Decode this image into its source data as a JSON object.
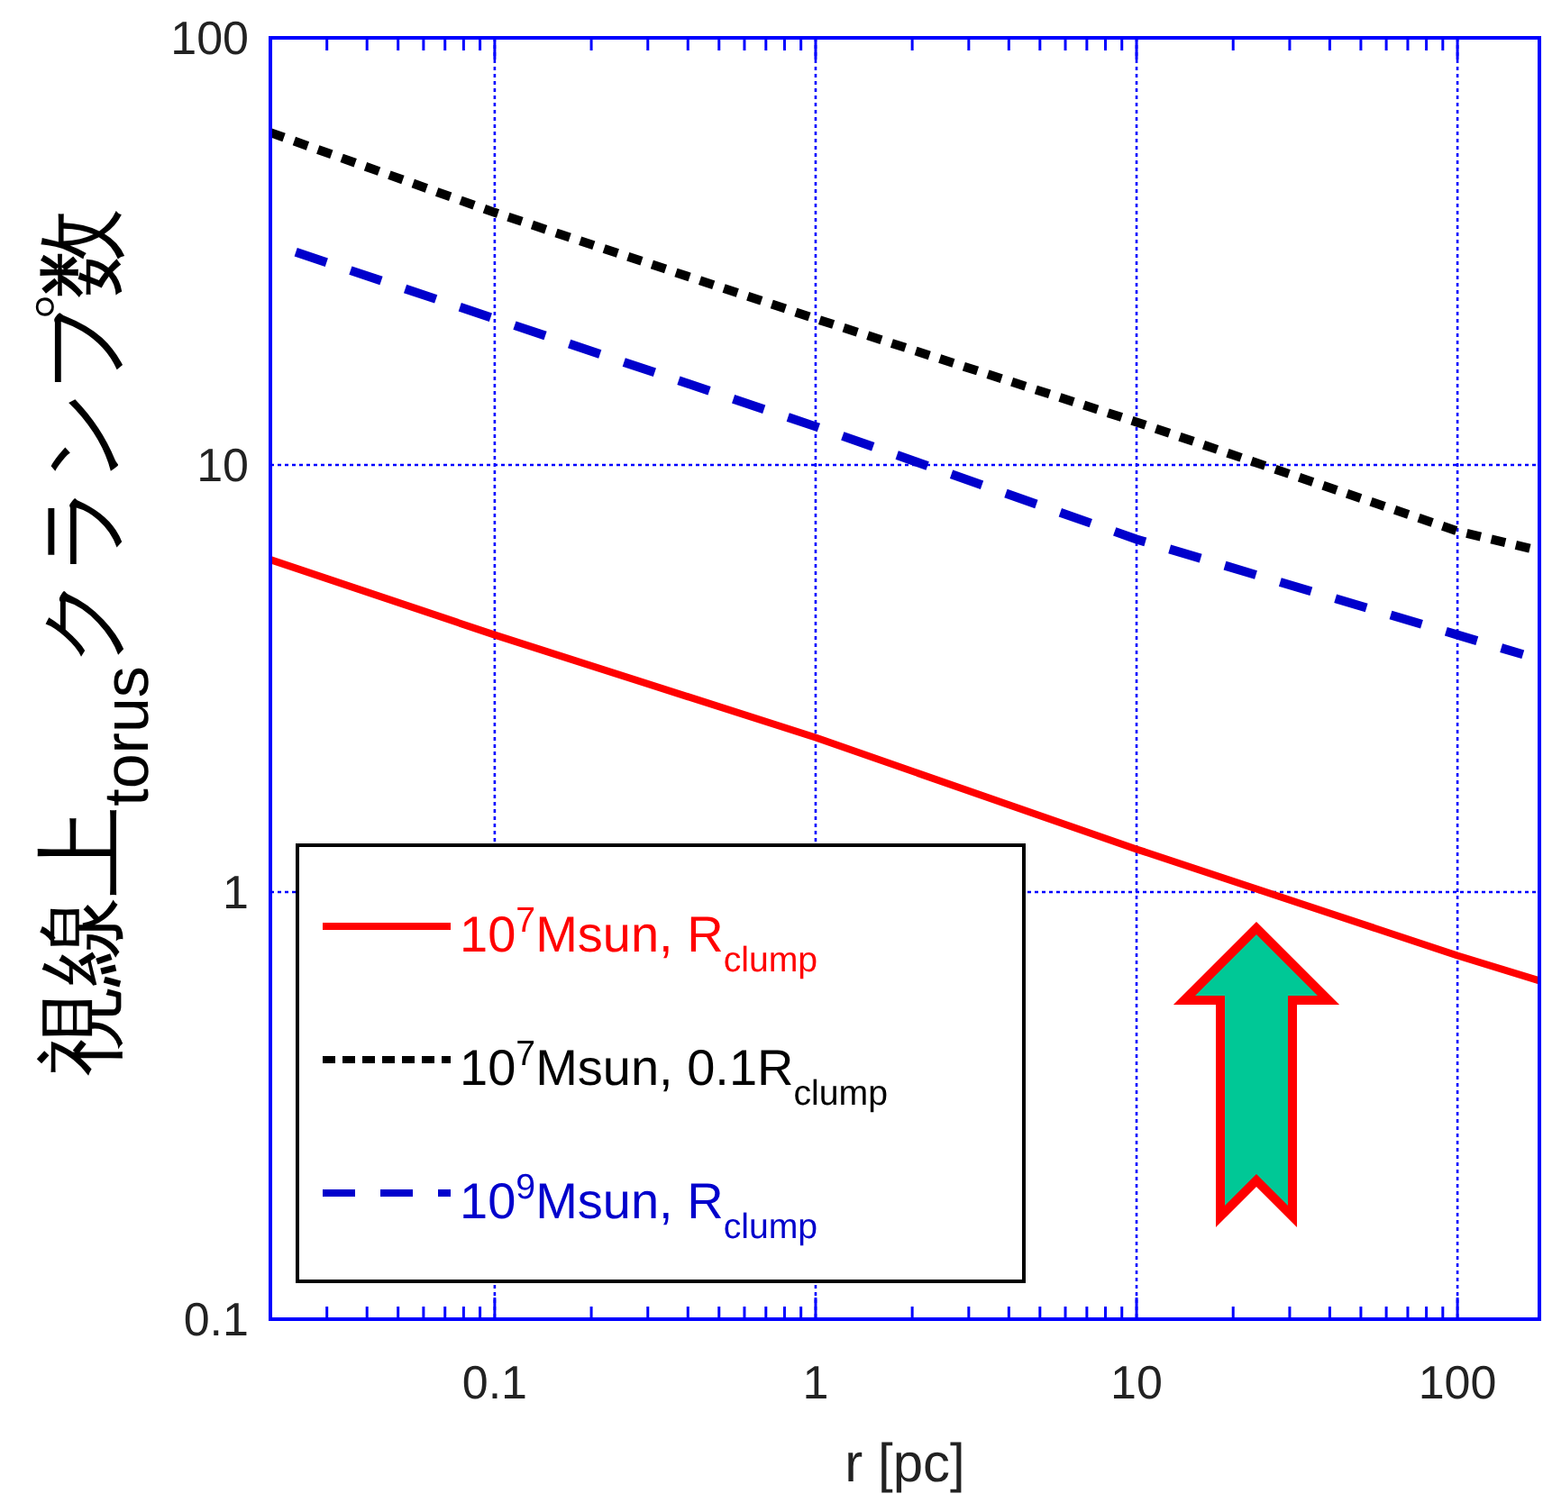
{
  "chart_data": {
    "type": "line",
    "xlabel": "r [pc]",
    "ylabel": "視線上$_{torus}$クランプ数",
    "log": "xy",
    "xlim": [
      0.02,
      180
    ],
    "ylim": [
      0.1,
      100
    ],
    "xticks": [
      0.1,
      1,
      10,
      100
    ],
    "yticks": [
      0.1,
      1,
      10,
      100
    ],
    "grid": true,
    "legend": "bottom left",
    "series": [
      {
        "name": "10$^{7}$Msun, R$_{clump}$",
        "color": "#ff0000",
        "line_style": "solid",
        "x": [
          0.02,
          0.1,
          1,
          10,
          100,
          180
        ],
        "values": [
          6,
          4,
          2.3,
          1.26,
          0.71,
          0.62
        ]
      },
      {
        "name": "10$^{7}$Msun, 0.1R$_{clump}$",
        "color": "#000000",
        "line_style": "dotted",
        "x": [
          0.02,
          0.1,
          1,
          10,
          100,
          180
        ],
        "values": [
          60,
          39,
          22,
          12.6,
          7,
          6.3
        ]
      },
      {
        "name": "10$^{9}$Msun, R$_{clump}$",
        "color": "#0000cc",
        "line_style": "dashed",
        "x": [
          0.024,
          0.1,
          1,
          10,
          100,
          160
        ],
        "values": [
          31.5,
          22,
          12.3,
          6.7,
          4,
          3.6
        ]
      }
    ]
  }
}
